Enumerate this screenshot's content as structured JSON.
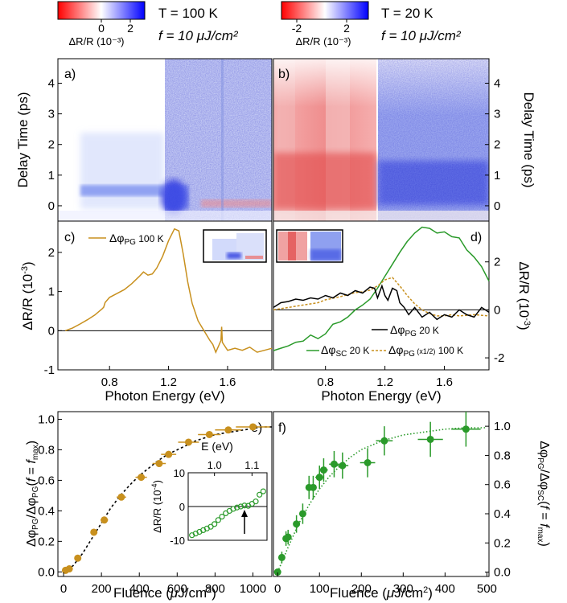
{
  "colorbars": [
    {
      "ticks": [
        "0",
        "2"
      ],
      "units": "ΔR/R (10⁻³)",
      "temperature": "T = 100 K",
      "fluence": "f = 10 μJ/cm²",
      "range": [
        -2.5,
        2.5
      ],
      "colors": {
        "negative": "#ff0000",
        "zero": "#ffffff",
        "positive": "#0000ff"
      }
    },
    {
      "ticks": [
        "-2",
        "2"
      ],
      "units": "ΔR/R (10⁻³)",
      "temperature": "T = 20 K",
      "fluence": "f = 10 μJ/cm²",
      "range": [
        -3,
        3
      ],
      "colors": {
        "negative": "#ff0000",
        "zero": "#ffffff",
        "positive": "#0000ff"
      }
    }
  ],
  "chart_data": [
    {
      "panel": "a)",
      "type": "heatmap",
      "xlim": [
        0.45,
        1.9
      ],
      "ylim": [
        -0.5,
        4.8
      ],
      "ylabel": "Delay Time (ps)",
      "yticks": [
        "0",
        "1",
        "2",
        "3",
        "4"
      ],
      "zlabel": "ΔR/R (10⁻³)",
      "features": [
        {
          "region": "E < 1.17 eV, t < 0.2 ps",
          "value": 0
        },
        {
          "region": "0.7–1.17 eV, t ≈ 0.2–1 ps",
          "value": 1.0
        },
        {
          "region": "≈1.22 eV, t ≈ 0.3 ps",
          "value": 2.5
        },
        {
          "region": "1.17–1.5 eV, t > 0.5 ps",
          "value": 0.6
        },
        {
          "region": "1.55–1.9 eV, t ≈ 0.3 ps",
          "value": -0.8
        }
      ]
    },
    {
      "panel": "b)",
      "type": "heatmap",
      "xlim": [
        0.45,
        1.9
      ],
      "ylim": [
        -0.5,
        4.8
      ],
      "ylabel": "Delay Time (ps)",
      "yticks": [
        "0",
        "1",
        "2",
        "3",
        "4"
      ],
      "zlabel": "ΔR/R (10⁻³)",
      "features": [
        {
          "region": "0.45–1.15 eV, t ≈ 0–1 ps",
          "value": -2.5
        },
        {
          "region": "0.45–1.15 eV, t > 1 ps",
          "value": -1.0
        },
        {
          "region": "1.2–1.9 eV, t ≈ 0–1 ps",
          "value": 2.5
        },
        {
          "region": "1.2–1.9 eV, t > 1 ps",
          "value": 1.2
        }
      ]
    },
    {
      "panel": "c)",
      "type": "line",
      "xlabel": "Photon Energy (eV)",
      "ylabel": "ΔR/R (10⁻³)",
      "xlim": [
        0.45,
        1.9
      ],
      "ylim": [
        -1,
        2.8
      ],
      "xticks": [
        "0.8",
        "1.2",
        "1.6"
      ],
      "yticks": [
        "-1",
        "0",
        "1",
        "2"
      ],
      "legend": "ΔφPG 100 K",
      "series": [
        {
          "name": "ΔφPG 100 K",
          "color": "#c8901e",
          "x": [
            0.5,
            0.55,
            0.6,
            0.65,
            0.7,
            0.75,
            0.76,
            0.77,
            0.8,
            0.85,
            0.9,
            0.95,
            1.0,
            1.03,
            1.06,
            1.09,
            1.12,
            1.16,
            1.2,
            1.24,
            1.27,
            1.3,
            1.33,
            1.36,
            1.4,
            1.44,
            1.48,
            1.5,
            1.52,
            1.54,
            1.555,
            1.56,
            1.565,
            1.6,
            1.65,
            1.7,
            1.75,
            1.8,
            1.85,
            1.9
          ],
          "y": [
            0.0,
            0.07,
            0.17,
            0.28,
            0.4,
            0.56,
            0.6,
            0.72,
            0.85,
            0.95,
            1.05,
            1.2,
            1.38,
            1.5,
            1.42,
            1.45,
            1.6,
            1.9,
            2.3,
            2.6,
            2.55,
            1.95,
            1.25,
            0.7,
            0.25,
            0.0,
            -0.25,
            -0.35,
            -0.55,
            -0.38,
            -0.25,
            0.1,
            -0.3,
            -0.5,
            -0.45,
            -0.5,
            -0.42,
            -0.55,
            -0.5,
            -0.45
          ]
        }
      ]
    },
    {
      "panel": "d)",
      "type": "line",
      "xlabel": "Photon Energy (eV)",
      "ylabel": "ΔR/R (10⁻³)",
      "xlim": [
        0.45,
        1.9
      ],
      "ylim": [
        -2.5,
        3.7
      ],
      "xticks": [
        "0.8",
        "1.2",
        "1.6"
      ],
      "yticks": [
        "-2",
        "0",
        "2"
      ],
      "series": [
        {
          "name": "ΔφPG 20 K",
          "color": "#000000",
          "x": [
            0.45,
            0.5,
            0.55,
            0.6,
            0.65,
            0.7,
            0.75,
            0.8,
            0.85,
            0.9,
            0.95,
            1.0,
            1.05,
            1.1,
            1.13,
            1.15,
            1.18,
            1.2,
            1.22,
            1.25,
            1.28,
            1.3,
            1.33,
            1.36,
            1.4,
            1.45,
            1.5,
            1.55,
            1.6,
            1.65,
            1.7,
            1.75,
            1.8,
            1.85,
            1.9
          ],
          "y": [
            0.1,
            0.3,
            0.35,
            0.45,
            0.4,
            0.5,
            0.45,
            0.6,
            0.5,
            0.7,
            0.6,
            0.8,
            0.7,
            0.95,
            0.9,
            0.5,
            1.0,
            0.6,
            0.4,
            0.9,
            0.8,
            0.3,
            0.1,
            -0.2,
            0.1,
            -0.3,
            -0.1,
            -0.4,
            -0.2,
            -0.3,
            0.0,
            -0.2,
            -0.3,
            0.1,
            -0.1
          ]
        },
        {
          "name": "ΔφSC 20 K",
          "color": "#2a9a2a",
          "x": [
            0.45,
            0.5,
            0.55,
            0.6,
            0.65,
            0.7,
            0.75,
            0.8,
            0.85,
            0.9,
            0.95,
            1.0,
            1.05,
            1.1,
            1.15,
            1.2,
            1.25,
            1.3,
            1.35,
            1.4,
            1.45,
            1.5,
            1.55,
            1.6,
            1.65,
            1.7,
            1.75,
            1.8,
            1.85,
            1.9
          ],
          "y": [
            -1.7,
            -1.6,
            -1.5,
            -1.35,
            -1.3,
            -1.05,
            -1.2,
            -1.0,
            -0.6,
            -0.5,
            -0.3,
            0.0,
            0.2,
            0.45,
            0.9,
            1.4,
            1.9,
            2.4,
            2.85,
            3.2,
            3.45,
            3.4,
            3.2,
            3.25,
            3.05,
            3.0,
            2.5,
            2.2,
            1.8,
            1.2
          ]
        },
        {
          "name": "ΔφPG (x1/2) 100 K",
          "color": "#c8901e",
          "x": [
            0.45,
            0.55,
            0.65,
            0.75,
            0.8,
            0.9,
            1.0,
            1.05,
            1.1,
            1.15,
            1.2,
            1.25,
            1.3,
            1.35,
            1.4,
            1.45,
            1.5,
            1.55,
            1.6,
            1.65,
            1.7,
            1.8,
            1.9
          ],
          "y": [
            0.0,
            0.1,
            0.2,
            0.3,
            0.42,
            0.55,
            0.72,
            0.75,
            0.82,
            1.0,
            1.25,
            1.35,
            1.0,
            0.6,
            0.25,
            0.0,
            -0.15,
            -0.25,
            -0.25,
            -0.2,
            -0.25,
            -0.2,
            -0.25
          ]
        }
      ]
    },
    {
      "panel": "e)",
      "type": "scatter",
      "xlabel": "Fluence (μJ/cm²)",
      "ylabel": "ΔφPG/ΔφPG(f=fmax)",
      "xlim": [
        -30,
        1100
      ],
      "ylim": [
        -0.03,
        1.05
      ],
      "xticks": [
        "0",
        "200",
        "400",
        "600",
        "800",
        "1000"
      ],
      "yticks": [
        "0.0",
        "0.2",
        "0.4",
        "0.6",
        "0.8",
        "1.0"
      ],
      "series": [
        {
          "name": "data",
          "color": "#c8901e",
          "x": [
            10,
            30,
            75,
            160,
            215,
            305,
            410,
            505,
            555,
            660,
            770,
            870,
            1000
          ],
          "y": [
            0.01,
            0.02,
            0.09,
            0.26,
            0.34,
            0.49,
            0.62,
            0.71,
            0.77,
            0.85,
            0.9,
            0.93,
            0.95
          ],
          "xerr": [
            5,
            5,
            10,
            15,
            20,
            25,
            30,
            35,
            40,
            55,
            60,
            70,
            90
          ]
        },
        {
          "name": "fit",
          "color": "#000000",
          "x": [
            0,
            50,
            100,
            150,
            200,
            250,
            300,
            350,
            400,
            450,
            500,
            550,
            600,
            650,
            700,
            750,
            800,
            850,
            900,
            950,
            1000,
            1050,
            1100
          ],
          "y": [
            0.0,
            0.04,
            0.12,
            0.22,
            0.32,
            0.42,
            0.5,
            0.57,
            0.63,
            0.68,
            0.73,
            0.77,
            0.8,
            0.83,
            0.86,
            0.88,
            0.9,
            0.91,
            0.92,
            0.93,
            0.94,
            0.95,
            0.95
          ]
        }
      ]
    },
    {
      "panel": "e) inset",
      "type": "scatter",
      "xlabel": "E (eV)",
      "ylabel": "ΔR/R (10⁻⁴)",
      "xlim": [
        0.93,
        1.14
      ],
      "ylim": [
        -10,
        10
      ],
      "xticks": [
        "1.0",
        "1.1"
      ],
      "yticks": [
        "10",
        "0",
        "-10"
      ],
      "series": [
        {
          "name": "data",
          "color": "#2a9a2a",
          "x": [
            0.94,
            0.95,
            0.96,
            0.97,
            0.98,
            0.99,
            1.0,
            1.01,
            1.02,
            1.03,
            1.04,
            1.05,
            1.06,
            1.07,
            1.08,
            1.09,
            1.1,
            1.11,
            1.12,
            1.13
          ],
          "y": [
            -8.5,
            -8,
            -7.5,
            -7,
            -6.5,
            -6,
            -5.2,
            -4,
            -3,
            -2,
            -1.3,
            -0.7,
            -0.3,
            0.0,
            0.3,
            0.2,
            0.8,
            1.5,
            3.5,
            4.5
          ]
        }
      ]
    },
    {
      "panel": "f)",
      "type": "scatter",
      "xlabel": "Fluence (μJ/cm²)",
      "ylabel": "ΔφPG/ΔφSC(f=fmax)",
      "xlim": [
        -10,
        505
      ],
      "ylim": [
        -0.03,
        1.1
      ],
      "xticks": [
        "0",
        "100",
        "200",
        "300",
        "400",
        "500"
      ],
      "yticks": [
        "0.0",
        "0.2",
        "0.4",
        "0.6",
        "0.8",
        "1.0"
      ],
      "series": [
        {
          "name": "data",
          "color": "#2a9a2a",
          "x": [
            0,
            10,
            20,
            25,
            45,
            60,
            75,
            85,
            100,
            110,
            135,
            155,
            215,
            255,
            365,
            450
          ],
          "y": [
            0.0,
            0.1,
            0.23,
            0.24,
            0.33,
            0.4,
            0.58,
            0.58,
            0.65,
            0.7,
            0.74,
            0.73,
            0.75,
            0.9,
            0.91,
            0.98
          ],
          "yerr": [
            0.02,
            0.04,
            0.05,
            0.05,
            0.06,
            0.07,
            0.08,
            0.08,
            0.08,
            0.08,
            0.09,
            0.09,
            0.1,
            0.1,
            0.12,
            0.12
          ],
          "xerr": [
            2,
            3,
            4,
            5,
            6,
            6,
            8,
            8,
            10,
            10,
            12,
            14,
            18,
            20,
            30,
            35
          ]
        },
        {
          "name": "fit",
          "color": "#2a9a2a",
          "x": [
            0,
            25,
            50,
            75,
            100,
            125,
            150,
            175,
            200,
            250,
            300,
            350,
            400,
            450,
            500
          ],
          "y": [
            0.0,
            0.17,
            0.33,
            0.46,
            0.57,
            0.66,
            0.73,
            0.79,
            0.84,
            0.9,
            0.94,
            0.96,
            0.98,
            0.99,
            0.99
          ]
        }
      ]
    }
  ]
}
